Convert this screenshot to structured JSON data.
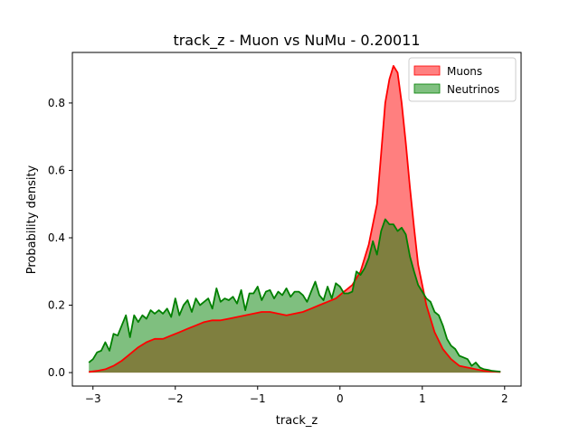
{
  "chart_data": {
    "type": "area",
    "title": "track_z - Muon vs NuMu - 0.20011",
    "xlabel": "track_z",
    "ylabel": "Probability density",
    "xlim": [
      -3.25,
      2.2
    ],
    "ylim": [
      -0.04,
      0.95
    ],
    "xticks": [
      -3,
      -2,
      -1,
      0,
      1,
      2
    ],
    "yticks": [
      0.0,
      0.2,
      0.4,
      0.6,
      0.8
    ],
    "legend": "top-right",
    "grid": false,
    "series": [
      {
        "name": "Muons",
        "fill": "#ff8080",
        "line": "#ff0000",
        "x": [
          -3.05,
          -2.95,
          -2.85,
          -2.75,
          -2.65,
          -2.55,
          -2.45,
          -2.35,
          -2.25,
          -2.15,
          -2.05,
          -1.95,
          -1.85,
          -1.75,
          -1.65,
          -1.55,
          -1.45,
          -1.35,
          -1.25,
          -1.15,
          -1.05,
          -0.95,
          -0.85,
          -0.75,
          -0.65,
          -0.55,
          -0.45,
          -0.35,
          -0.25,
          -0.15,
          -0.05,
          0.05,
          0.15,
          0.25,
          0.35,
          0.45,
          0.5,
          0.55,
          0.6,
          0.65,
          0.7,
          0.75,
          0.8,
          0.85,
          0.9,
          0.95,
          1.05,
          1.15,
          1.25,
          1.35,
          1.45,
          1.55,
          1.65,
          1.75,
          1.85,
          1.95
        ],
        "y": [
          0.002,
          0.005,
          0.01,
          0.02,
          0.035,
          0.055,
          0.075,
          0.09,
          0.1,
          0.1,
          0.11,
          0.12,
          0.13,
          0.14,
          0.15,
          0.155,
          0.155,
          0.16,
          0.165,
          0.17,
          0.175,
          0.18,
          0.18,
          0.175,
          0.17,
          0.175,
          0.18,
          0.19,
          0.2,
          0.21,
          0.22,
          0.24,
          0.26,
          0.3,
          0.38,
          0.5,
          0.65,
          0.8,
          0.87,
          0.91,
          0.89,
          0.8,
          0.68,
          0.55,
          0.43,
          0.32,
          0.2,
          0.12,
          0.07,
          0.04,
          0.02,
          0.015,
          0.01,
          0.005,
          0.003,
          0.002
        ]
      },
      {
        "name": "Neutrinos",
        "fill": "#80c080",
        "line": "#008000",
        "x": [
          -3.05,
          -3.0,
          -2.95,
          -2.9,
          -2.85,
          -2.8,
          -2.75,
          -2.7,
          -2.65,
          -2.6,
          -2.55,
          -2.5,
          -2.45,
          -2.4,
          -2.35,
          -2.3,
          -2.25,
          -2.2,
          -2.15,
          -2.1,
          -2.05,
          -2.0,
          -1.95,
          -1.9,
          -1.85,
          -1.8,
          -1.75,
          -1.7,
          -1.65,
          -1.6,
          -1.55,
          -1.5,
          -1.45,
          -1.4,
          -1.35,
          -1.3,
          -1.25,
          -1.2,
          -1.15,
          -1.1,
          -1.05,
          -1.0,
          -0.95,
          -0.9,
          -0.85,
          -0.8,
          -0.75,
          -0.7,
          -0.65,
          -0.6,
          -0.55,
          -0.5,
          -0.45,
          -0.4,
          -0.35,
          -0.3,
          -0.25,
          -0.2,
          -0.15,
          -0.1,
          -0.05,
          0.0,
          0.05,
          0.1,
          0.15,
          0.2,
          0.25,
          0.3,
          0.35,
          0.4,
          0.45,
          0.5,
          0.55,
          0.6,
          0.65,
          0.7,
          0.75,
          0.8,
          0.85,
          0.9,
          0.95,
          1.0,
          1.05,
          1.1,
          1.15,
          1.2,
          1.25,
          1.3,
          1.35,
          1.4,
          1.45,
          1.5,
          1.55,
          1.6,
          1.65,
          1.7,
          1.75,
          1.8,
          1.85,
          1.9,
          1.95
        ],
        "y": [
          0.03,
          0.04,
          0.06,
          0.065,
          0.09,
          0.065,
          0.115,
          0.11,
          0.14,
          0.17,
          0.105,
          0.17,
          0.15,
          0.17,
          0.16,
          0.185,
          0.175,
          0.185,
          0.175,
          0.19,
          0.165,
          0.22,
          0.17,
          0.2,
          0.215,
          0.18,
          0.22,
          0.2,
          0.21,
          0.22,
          0.19,
          0.25,
          0.21,
          0.22,
          0.215,
          0.225,
          0.205,
          0.245,
          0.185,
          0.235,
          0.235,
          0.255,
          0.215,
          0.24,
          0.245,
          0.22,
          0.24,
          0.23,
          0.25,
          0.225,
          0.24,
          0.24,
          0.23,
          0.21,
          0.24,
          0.27,
          0.23,
          0.215,
          0.255,
          0.22,
          0.265,
          0.255,
          0.235,
          0.235,
          0.24,
          0.3,
          0.29,
          0.31,
          0.34,
          0.39,
          0.35,
          0.42,
          0.455,
          0.44,
          0.44,
          0.42,
          0.43,
          0.41,
          0.345,
          0.3,
          0.26,
          0.24,
          0.22,
          0.21,
          0.18,
          0.17,
          0.14,
          0.1,
          0.08,
          0.07,
          0.05,
          0.045,
          0.04,
          0.02,
          0.03,
          0.015,
          0.01,
          0.008,
          0.005,
          0.004,
          0.003
        ]
      }
    ]
  }
}
